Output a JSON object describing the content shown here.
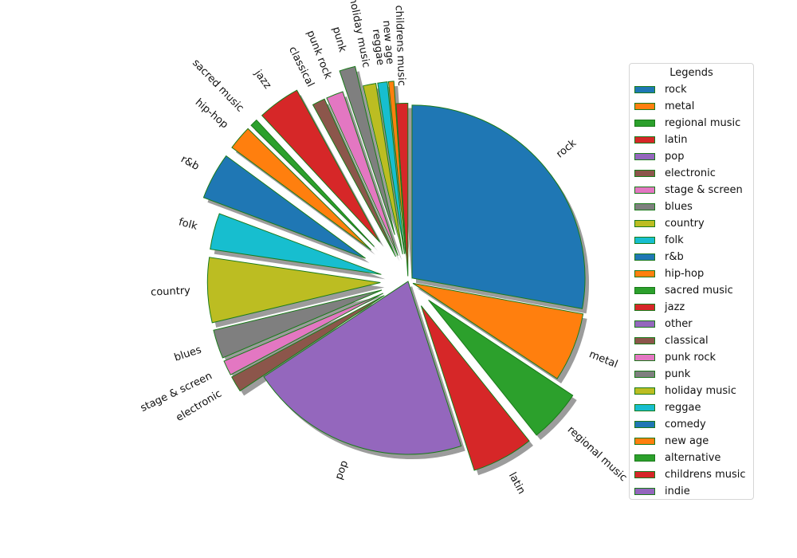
{
  "chart_data": {
    "type": "pie",
    "title": "",
    "categories": [
      "rock",
      "metal",
      "regional music",
      "latin",
      "pop",
      "electronic",
      "stage & screen",
      "blues",
      "country",
      "folk",
      "r&b",
      "hip-hop",
      "sacred music",
      "jazz",
      "other",
      "classical",
      "punk rock",
      "punk",
      "holiday music",
      "reggae",
      "comedy",
      "new age",
      "alternative",
      "childrens music",
      "indie"
    ],
    "values": [
      28.0,
      6.5,
      5.0,
      5.8,
      20.8,
      1.5,
      1.4,
      2.7,
      6.1,
      3.4,
      4.4,
      2.3,
      0.7,
      4.0,
      0,
      1.2,
      1.6,
      1.5,
      1.2,
      0.9,
      0,
      0.5,
      0,
      1.1,
      0
    ],
    "explode": [
      0.03,
      0.03,
      0.16,
      0.16,
      0.0,
      0.16,
      0.16,
      0.16,
      0.16,
      0.16,
      0.28,
      0.28,
      0.28,
      0.28,
      0.28,
      0.16,
      0.16,
      0.28,
      0.16,
      0.16,
      0.28,
      0.16,
      0.28,
      0.03,
      0.28
    ],
    "colors": [
      "#1f77b4",
      "#ff7f0e",
      "#2ca02c",
      "#d62728",
      "#9467bd",
      "#8c564b",
      "#e377c2",
      "#7f7f7f",
      "#bcbd22",
      "#17becf",
      "#1f77b4",
      "#ff7f0e",
      "#2ca02c",
      "#d62728",
      "#9467bd",
      "#8c564b",
      "#e377c2",
      "#7f7f7f",
      "#bcbd22",
      "#17becf",
      "#1f77b4",
      "#ff7f0e",
      "#2ca02c",
      "#d62728",
      "#9467bd"
    ],
    "edge_color": "#1a7a1a",
    "shadow": true,
    "start_angle_deg": 90,
    "direction": "clockwise",
    "legend": {
      "title": "Legends",
      "placement": "right",
      "entries": [
        "rock",
        "metal",
        "regional music",
        "latin",
        "pop",
        "electronic",
        "stage & screen",
        "blues",
        "country",
        "folk",
        "r&b",
        "hip-hop",
        "sacred music",
        "jazz",
        "other",
        "classical",
        "punk rock",
        "punk",
        "holiday music",
        "reggae",
        "comedy",
        "new age",
        "alternative",
        "childrens music",
        "indie"
      ]
    }
  }
}
